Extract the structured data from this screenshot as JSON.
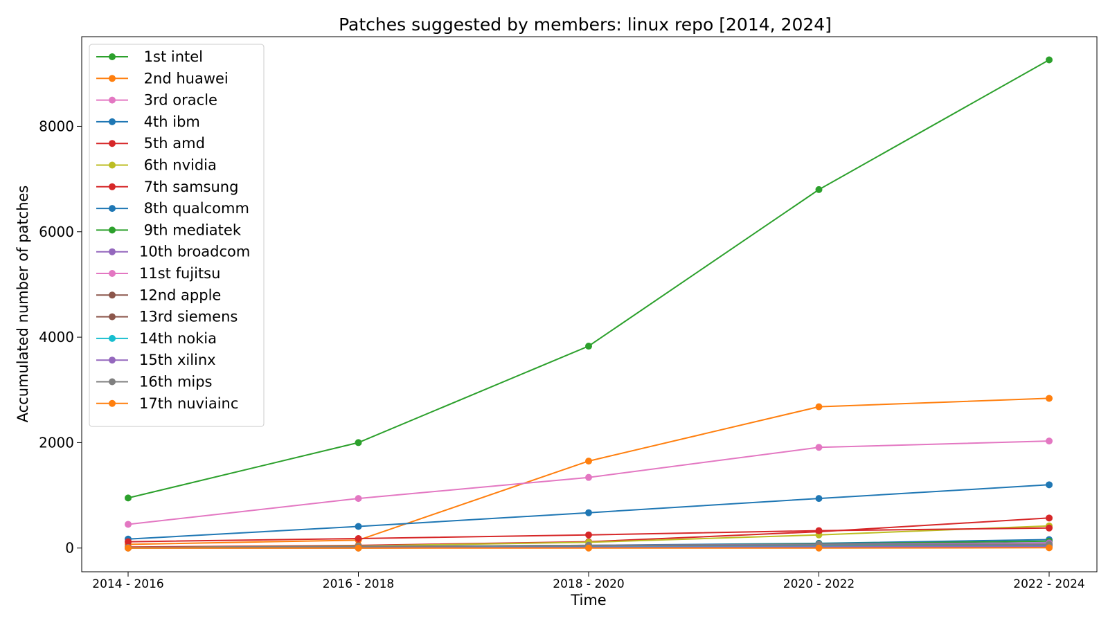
{
  "chart_data": {
    "type": "line",
    "title": "Patches suggested by members: linux repo [2014, 2024]",
    "xlabel": "Time",
    "ylabel": "Accumulated number of patches",
    "categories": [
      "2014 - 2016",
      "2016 - 2018",
      "2018 - 2020",
      "2020 - 2022",
      "2022 - 2024"
    ],
    "yticks": [
      0,
      2000,
      4000,
      6000,
      8000
    ],
    "ylim": [
      -450,
      9700
    ],
    "grid": false,
    "legend_position": "upper-left",
    "series": [
      {
        "name": " 1st intel",
        "color": "#2ca02c",
        "values": [
          950,
          2000,
          3830,
          6800,
          9260
        ]
      },
      {
        "name": " 2nd huawei",
        "color": "#ff7f0e",
        "values": [
          70,
          150,
          1650,
          2680,
          2840
        ]
      },
      {
        "name": " 3rd oracle",
        "color": "#e377c2",
        "values": [
          450,
          940,
          1340,
          1910,
          2030
        ]
      },
      {
        "name": " 4th ibm",
        "color": "#1f77b4",
        "values": [
          170,
          410,
          670,
          940,
          1200
        ]
      },
      {
        "name": " 5th amd",
        "color": "#d62728",
        "values": [
          20,
          50,
          120,
          310,
          570
        ]
      },
      {
        "name": " 6th nvidia",
        "color": "#bcbd22",
        "values": [
          10,
          40,
          110,
          250,
          420
        ]
      },
      {
        "name": " 7th samsung",
        "color": "#d62728",
        "values": [
          120,
          180,
          250,
          330,
          380
        ]
      },
      {
        "name": " 8th qualcomm",
        "color": "#1f77b4",
        "values": [
          5,
          20,
          50,
          90,
          160
        ]
      },
      {
        "name": " 9th mediatek",
        "color": "#2ca02c",
        "values": [
          2,
          10,
          40,
          80,
          130
        ]
      },
      {
        "name": "10th broadcom",
        "color": "#9467bd",
        "values": [
          10,
          30,
          50,
          70,
          100
        ]
      },
      {
        "name": "11st fujitsu",
        "color": "#e377c2",
        "values": [
          5,
          15,
          30,
          50,
          80
        ]
      },
      {
        "name": "12nd apple",
        "color": "#8c564b",
        "values": [
          0,
          0,
          5,
          20,
          60
        ]
      },
      {
        "name": "13rd siemens",
        "color": "#8c564b",
        "values": [
          5,
          15,
          30,
          40,
          50
        ]
      },
      {
        "name": "14th nokia",
        "color": "#17becf",
        "values": [
          5,
          10,
          20,
          30,
          40
        ]
      },
      {
        "name": "15th xilinx",
        "color": "#9467bd",
        "values": [
          5,
          10,
          15,
          20,
          30
        ]
      },
      {
        "name": "16th mips",
        "color": "#7f7f7f",
        "values": [
          10,
          30,
          50,
          60,
          70
        ]
      },
      {
        "name": "17th nuviainc",
        "color": "#ff7f0e",
        "values": [
          0,
          0,
          0,
          0,
          5
        ]
      }
    ]
  }
}
